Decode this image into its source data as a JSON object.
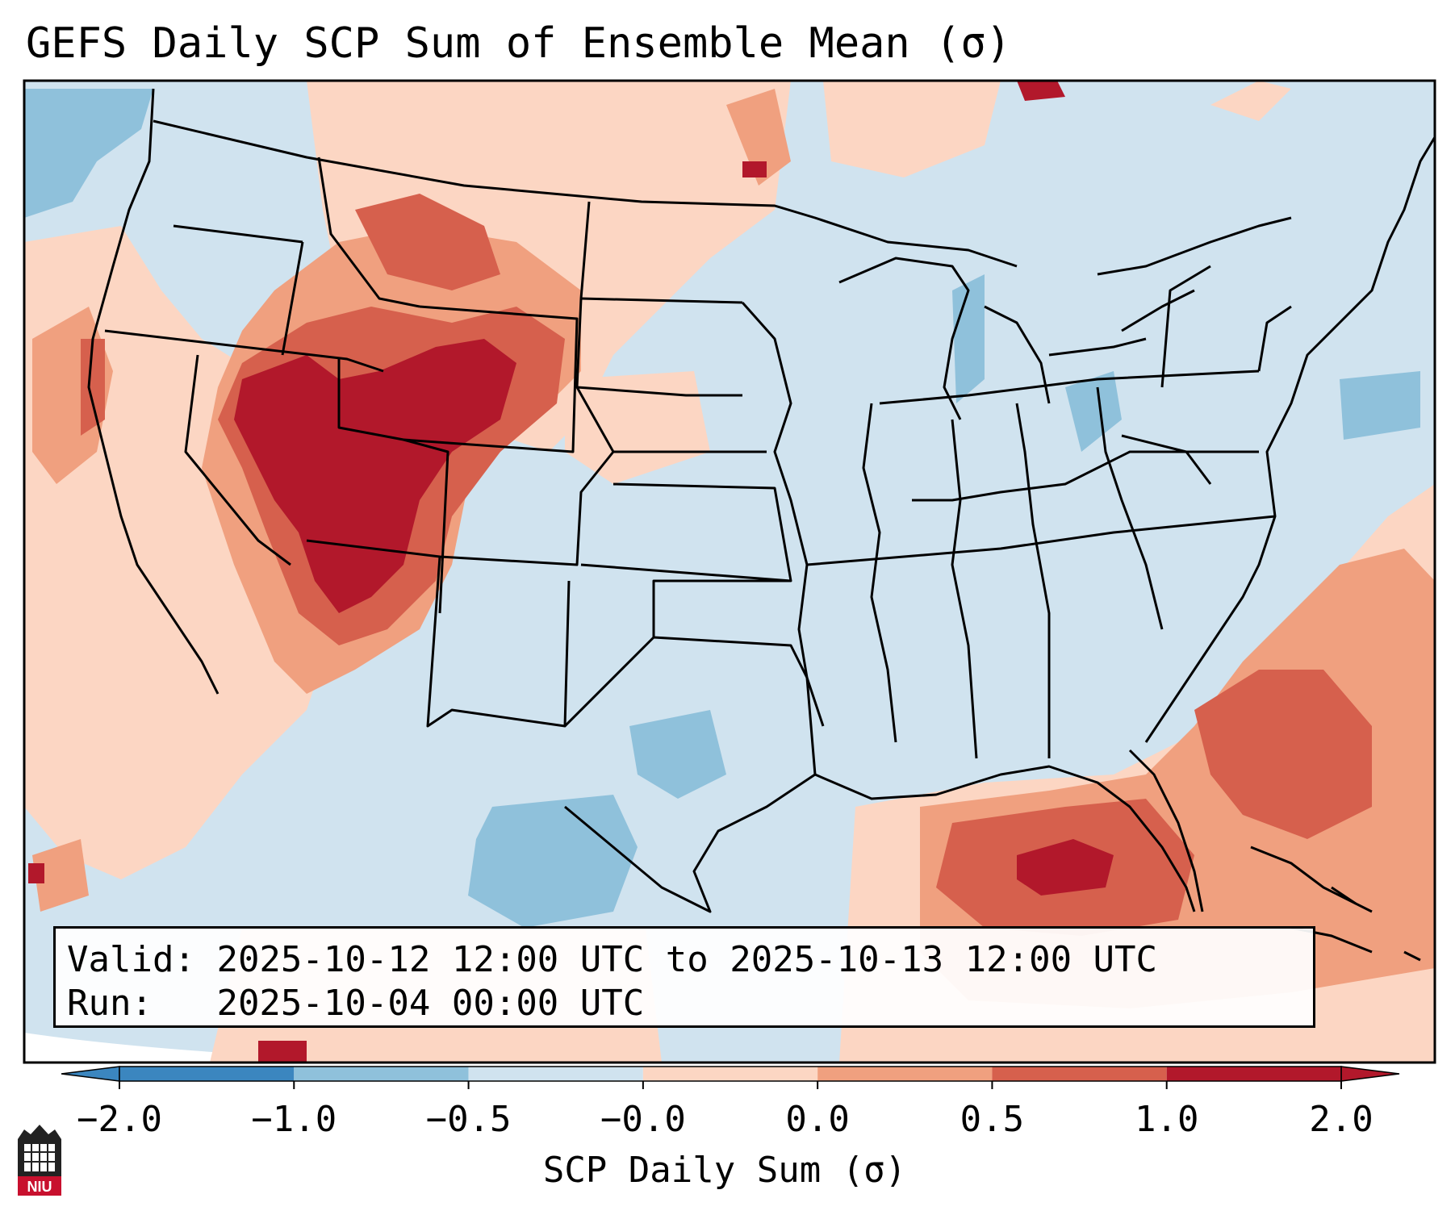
{
  "title": "GEFS Daily SCP Sum of Ensemble Mean (σ)",
  "info": {
    "valid_label": "Valid:",
    "valid_value": "2025-10-12 12:00 UTC to 2025-10-13 12:00 UTC",
    "run_label": "Run:",
    "run_value": "2025-10-04 00:00 UTC"
  },
  "colorbar": {
    "label": "SCP Daily Sum (σ)",
    "ticks": [
      "−2.0",
      "−1.0",
      "−0.5",
      "−0.0",
      "0.0",
      "0.5",
      "1.0",
      "2.0"
    ],
    "colors": [
      "#3b86bf",
      "#8fc1db",
      "#d0e3ef",
      "#fcd6c3",
      "#f0a07f",
      "#d6604d",
      "#b2182b"
    ],
    "extend": "both"
  },
  "map": {
    "region": "CONUS",
    "background_color": "#d0e3ef",
    "anomalies": [
      "Strong positive anomaly (>2σ) over Utah, western Colorado, Wyoming, northern Arizona",
      "Positive anomaly (1–2σ) over Idaho, Montana, Nevada, California coast",
      "Positive anomaly (0.5–2σ) over Gulf of Mexico, Florida, western Atlantic",
      "Weak negative anomaly (−0.5 to −1σ) over south Texas, northern Mexico, Great Lakes"
    ]
  },
  "logo": {
    "text": "NIU"
  }
}
